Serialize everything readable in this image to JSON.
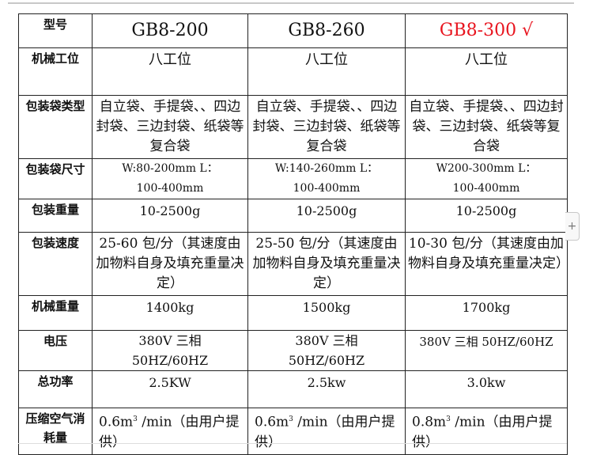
{
  "highlight_color": "#e8141e",
  "header": {
    "label": "型号",
    "models": [
      "GB8-200",
      "GB8-260",
      "GB8-300 √"
    ]
  },
  "rows": [
    {
      "label": "机械工位",
      "values": [
        "八工位",
        "八工位",
        "八工位"
      ]
    },
    {
      "label": "包装袋类型",
      "values": [
        "自立袋、手提袋、、四边封袋、三边封袋、纸袋等复合袋",
        "自立袋、手提袋、、四边封袋、三边封袋、纸袋等复合袋",
        "自立袋、手提袋、、四边封袋、三边封袋、纸袋等复合袋"
      ]
    },
    {
      "label": "包装袋尺寸",
      "values": [
        "W:80-200mm L：100-400mm",
        "W:140-260mm L：100-400mm",
        "W200-300mm L：100-400mm"
      ]
    },
    {
      "label": "包装重量",
      "values": [
        "10-2500g",
        "10-2500g",
        "10-2500g"
      ]
    },
    {
      "label": "包装速度",
      "values": [
        "25-60 包/分（其速度由加物料自身及填充重量决定）",
        "25-50 包/分（其速度由加物料自身及填充重量决定）",
        "10-30 包/分（其速度由加物料自身及填充重量决定）"
      ]
    },
    {
      "label": "机械重量",
      "values": [
        "1400kg",
        "1500kg",
        "1700kg"
      ]
    },
    {
      "label": "电压",
      "values": [
        "380V 三相 50HZ/60HZ",
        "380V 三相 50HZ/60HZ",
        "380V 三相 50HZ/60HZ"
      ]
    },
    {
      "label": "总功率",
      "values": [
        "2.5KW",
        "2.5kw",
        "3.0kw"
      ]
    },
    {
      "label": "压缩空气消耗量",
      "values": [
        "0.6m",
        "0.6m",
        "0.8m"
      ],
      "unit_sup": "3",
      "unit_rest": " /min（由用户提供）"
    }
  ],
  "expand_button": "+"
}
